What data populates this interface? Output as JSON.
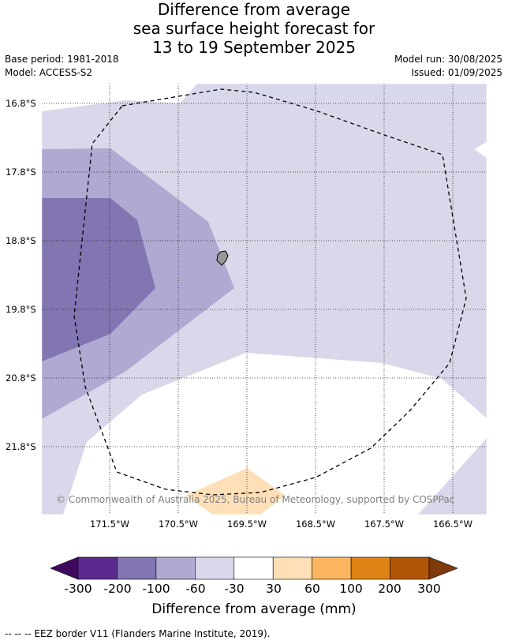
{
  "title": {
    "line1": "Difference from average",
    "line2": "sea surface height forecast for",
    "line3": "13 to 19 September 2025"
  },
  "meta": {
    "base_period": "Base period: 1981-2018",
    "model": "Model: ACCESS-S2",
    "model_run": "Model run: 30/08/2025",
    "issued": "Issued: 01/09/2025"
  },
  "map": {
    "lat_labels": [
      "16.8°S",
      "17.8°S",
      "18.8°S",
      "19.8°S",
      "20.8°S",
      "21.8°S"
    ],
    "lon_labels": [
      "171.5°W",
      "170.5°W",
      "169.5°W",
      "168.5°W",
      "167.5°W",
      "166.5°W"
    ],
    "copyright": "© Commonwealth of Australia 2025, Bureau of Meteorology, supported by COSPPac",
    "colors": {
      "light_purple": "#d8d8ea",
      "mid_purple": "#b0a9d1",
      "dark_purple": "#8275b1",
      "light_orange": "#fde0b8",
      "island": "#999999"
    }
  },
  "colorbar": {
    "ticks": [
      "-300",
      "-200",
      "-100",
      "-60",
      "-30",
      "30",
      "60",
      "100",
      "200",
      "300"
    ],
    "colors": [
      "#3f0a5e",
      "#5c2a8f",
      "#8275b1",
      "#b0a9d1",
      "#d8d8ea",
      "#ffffff",
      "#fde0b8",
      "#fbb65f",
      "#e08316",
      "#b15507",
      "#7f3a0b"
    ],
    "label": "Difference from average (mm)"
  },
  "footer": "-- -- -- EEZ border V11 (Flanders Marine Institute, 2019)."
}
